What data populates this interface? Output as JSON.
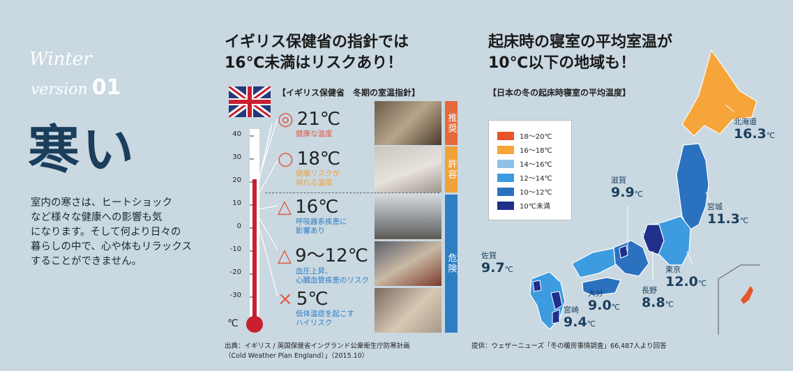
{
  "left": {
    "winter": "Winter",
    "version_word": "version",
    "version_num": "01",
    "title": "寒い",
    "description": "室内の寒さは、ヒートショック\nなど様々な健康への影響も気\nになります。そして何より日々の\n暮らしの中で、心や体もリラックス\nすることができません。"
  },
  "middle": {
    "heading": "イギリス保健省の指針では\n16℃未満はリスクあり！",
    "subheading": "【イギリス保健省　冬期の室温指針】",
    "ticks": [
      "40",
      "30",
      "20",
      "10",
      "0",
      "-10",
      "-20",
      "-30"
    ],
    "unit": "℃",
    "levels": [
      {
        "mark": "◎",
        "temp": "21℃",
        "desc": "健康な温度",
        "color": "#e05a43"
      },
      {
        "mark": "○",
        "temp": "18℃",
        "desc": "健康リスクが\n現れる温度",
        "color": "#f0a23a"
      },
      {
        "mark": "△",
        "temp": "16℃",
        "desc": "呼吸器系疾患に\n影響あり",
        "color": "#2f7ec4"
      },
      {
        "mark": "△",
        "temp": "9～12℃",
        "desc": "血圧上昇、\n心臓血管疾患のリスク",
        "color": "#2f7ec4"
      },
      {
        "mark": "×",
        "temp": "5℃",
        "desc": "低体温症を起こす\nハイリスク",
        "color": "#2f7ec4"
      }
    ],
    "bands": [
      {
        "label": "推奨",
        "color": "#e46a3b"
      },
      {
        "label": "許容",
        "color": "#f0a23a"
      },
      {
        "label": "危険",
        "color": "#2f7ec4"
      }
    ],
    "source": "出典：イギリス / 英国保健省イングランド公衆衛生庁防寒計画\n（Cold Weather Plan England）」（2015.10）"
  },
  "right": {
    "heading": "起床時の寝室の平均室温が\n10℃以下の地域も！",
    "subheading": "【日本の冬の起床時寝室の平均温度】",
    "legend": [
      {
        "label": "18～20℃",
        "color": "#e8552a"
      },
      {
        "label": "16～18℃",
        "color": "#f5a53a"
      },
      {
        "label": "14～16℃",
        "color": "#8ec0e8"
      },
      {
        "label": "12～14℃",
        "color": "#3d9be0"
      },
      {
        "label": "10～12℃",
        "color": "#2a72c0"
      },
      {
        "label": "10℃未満",
        "color": "#1f2f8a"
      }
    ],
    "prefectures": [
      {
        "name": "北海道",
        "value": "16.3",
        "unit": "℃"
      },
      {
        "name": "宮城",
        "value": "11.3",
        "unit": "℃"
      },
      {
        "name": "滋賀",
        "value": "9.9",
        "unit": "℃"
      },
      {
        "name": "東京",
        "value": "12.0",
        "unit": "℃"
      },
      {
        "name": "長野",
        "value": "8.8",
        "unit": "℃"
      },
      {
        "name": "佐賀",
        "value": "9.7",
        "unit": "℃"
      },
      {
        "name": "大分",
        "value": "9.0",
        "unit": "℃"
      },
      {
        "name": "宮崎",
        "value": "9.4",
        "unit": "℃"
      }
    ],
    "source": "提供：ウェザーニューズ「冬の暖房事情調査」66,487人より回答"
  }
}
